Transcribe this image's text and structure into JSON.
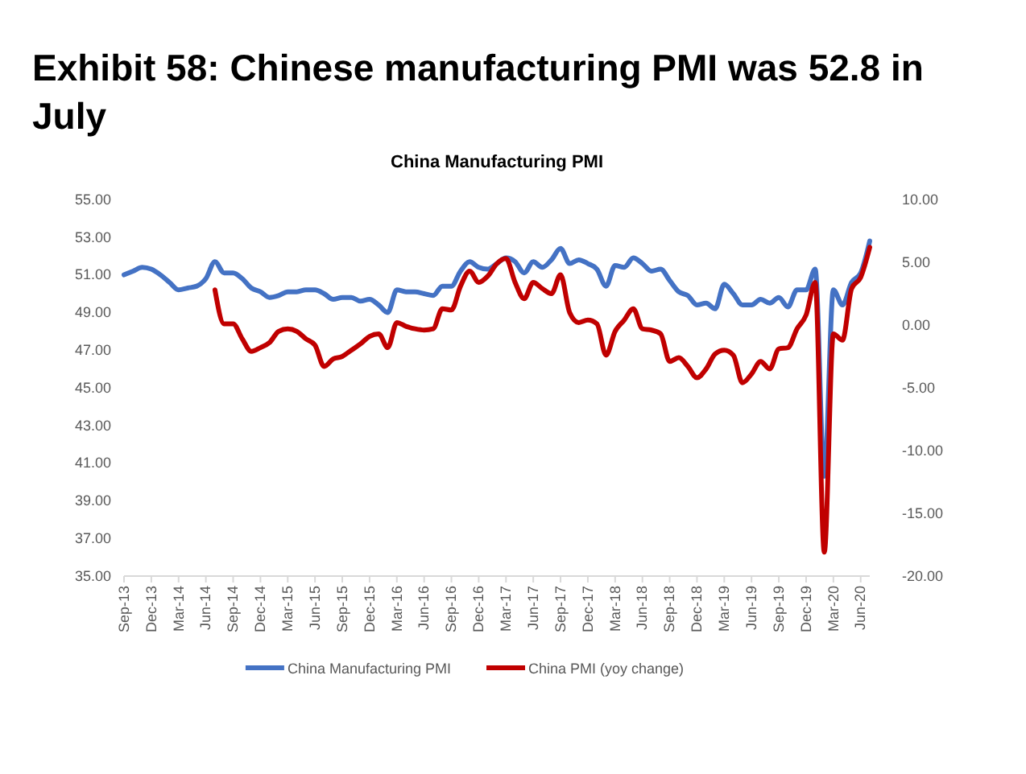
{
  "chart_data": {
    "type": "line",
    "title": "Exhibit 58: Chinese manufacturing PMI was 52.8 in July",
    "subtitle": "China Manufacturing PMI",
    "categories": [
      "Sep-13",
      null,
      null,
      "Dec-13",
      null,
      null,
      "Mar-14",
      null,
      null,
      "Jun-14",
      null,
      null,
      "Sep-14",
      null,
      null,
      "Dec-14",
      null,
      null,
      "Mar-15",
      null,
      null,
      "Jun-15",
      null,
      null,
      "Sep-15",
      null,
      null,
      "Dec-15",
      null,
      null,
      "Mar-16",
      null,
      null,
      "Jun-16",
      null,
      null,
      "Sep-16",
      null,
      null,
      "Dec-16",
      null,
      null,
      "Mar-17",
      null,
      null,
      "Jun-17",
      null,
      null,
      "Sep-17",
      null,
      null,
      "Dec-17",
      null,
      null,
      "Mar-18",
      null,
      null,
      "Jun-18",
      null,
      null,
      "Sep-18",
      null,
      null,
      "Dec-18",
      null,
      null,
      "Mar-19",
      null,
      null,
      "Jun-19",
      null,
      null,
      "Sep-19",
      null,
      null,
      "Dec-19",
      null,
      null,
      "Mar-20",
      null,
      null,
      "Jun-20",
      null
    ],
    "series": [
      {
        "name": "China Manufacturing PMI",
        "color": "#4472c4",
        "values": [
          51.0,
          51.2,
          51.4,
          51.3,
          51.0,
          50.6,
          50.2,
          50.3,
          50.4,
          50.8,
          51.7,
          51.1,
          51.1,
          50.8,
          50.3,
          50.1,
          49.8,
          49.9,
          50.1,
          50.1,
          50.2,
          50.2,
          50.0,
          49.7,
          49.8,
          49.8,
          49.6,
          49.7,
          49.4,
          49.0,
          50.2,
          50.1,
          50.1,
          50.0,
          49.9,
          50.4,
          50.4,
          51.2,
          51.7,
          51.4,
          51.3,
          51.6,
          51.9,
          51.7,
          51.1,
          51.7,
          51.4,
          51.8,
          52.4,
          51.6,
          51.8,
          51.6,
          51.3,
          50.4,
          51.5,
          51.4,
          51.9,
          51.6,
          51.2,
          51.3,
          50.7,
          50.1,
          49.9,
          49.4,
          49.5,
          49.2,
          50.5,
          50.0,
          49.4,
          49.4,
          49.7,
          49.5,
          49.8,
          49.3,
          50.2,
          50.2,
          51.3,
          40.3,
          50.2,
          49.4,
          50.6,
          51.1,
          52.8
        ]
      },
      {
        "name": "China PMI (yoy change)",
        "color": "#c00000",
        "axis": "y2",
        "values": [
          null,
          null,
          null,
          null,
          null,
          null,
          null,
          null,
          null,
          null,
          2.8,
          0.1,
          0.1,
          -1.1,
          -2.1,
          -1.8,
          -1.4,
          -0.5,
          -0.3,
          -0.5,
          -1.1,
          -1.6,
          -3.3,
          -2.7,
          -2.5,
          -2.0,
          -1.5,
          -0.9,
          -0.7,
          -1.8,
          0.2,
          -0.1,
          -0.3,
          -0.4,
          -0.3,
          1.3,
          1.2,
          3.1,
          4.3,
          3.4,
          3.9,
          4.9,
          5.3,
          3.4,
          2.1,
          3.4,
          2.9,
          2.5,
          4.0,
          1.0,
          0.2,
          0.4,
          0.1,
          -2.4,
          -0.5,
          0.4,
          1.3,
          -0.3,
          -0.4,
          -0.7,
          -2.9,
          -2.6,
          -3.3,
          -4.2,
          -3.5,
          -2.3,
          -2.0,
          -2.4,
          -4.6,
          -3.9,
          -2.9,
          -3.5,
          -1.9,
          -1.8,
          -0.3,
          0.8,
          3.4,
          -18.1,
          -0.7,
          -1.2,
          2.9,
          3.8,
          6.2
        ]
      }
    ],
    "ylim": [
      35,
      55
    ],
    "yticks": [
      {
        "value": 35,
        "label": "35.00"
      },
      {
        "value": 37,
        "label": "37.00"
      },
      {
        "value": 39,
        "label": "39.00"
      },
      {
        "value": 41,
        "label": "41.00"
      },
      {
        "value": 43,
        "label": "43.00"
      },
      {
        "value": 45,
        "label": "45.00"
      },
      {
        "value": 47,
        "label": "47.00"
      },
      {
        "value": 49,
        "label": "49.00"
      },
      {
        "value": 51,
        "label": "51.00"
      },
      {
        "value": 53,
        "label": "53.00"
      },
      {
        "value": 55,
        "label": "55.00"
      }
    ],
    "y2lim": [
      -20,
      10
    ],
    "y2ticks": [
      {
        "value": -20,
        "label": "-20.00"
      },
      {
        "value": -15,
        "label": "-15.00"
      },
      {
        "value": -10,
        "label": "-10.00"
      },
      {
        "value": -5,
        "label": "-5.00"
      },
      {
        "value": 0,
        "label": "0.00"
      },
      {
        "value": 5,
        "label": "5.00"
      },
      {
        "value": 10,
        "label": "10.00"
      }
    ],
    "grid": false,
    "legend": "bottom",
    "line_style": "solid"
  }
}
